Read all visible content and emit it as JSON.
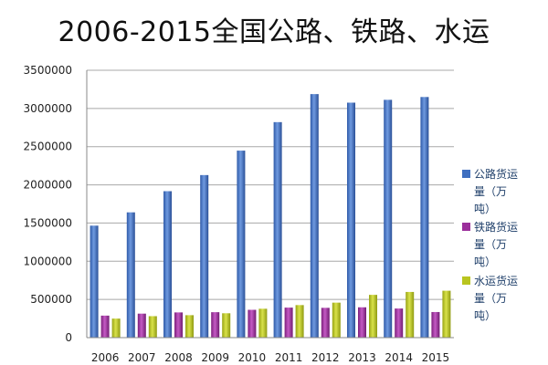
{
  "chart_data": {
    "type": "bar",
    "title": "2006-2015全国公路、铁路、水运",
    "xlabel": "",
    "ylabel": "",
    "categories": [
      "2006",
      "2007",
      "2008",
      "2009",
      "2010",
      "2011",
      "2012",
      "2013",
      "2014",
      "2015"
    ],
    "ylim": [
      0,
      3500000
    ],
    "yticks": [
      "0",
      "500000",
      "1000000",
      "1500000",
      "2000000",
      "2500000",
      "3000000",
      "3500000"
    ],
    "grid": true,
    "legend_position": "right",
    "series": [
      {
        "name": "公路货运量（万吨）",
        "legend_lines": [
          "公路货运",
          "量（万",
          "吨）"
        ],
        "color": "#3f6fc0",
        "values": [
          1466000,
          1640000,
          1917000,
          2128000,
          2448000,
          2821000,
          3188000,
          3076000,
          3113000,
          3150000
        ]
      },
      {
        "name": "铁路货运量（万吨）",
        "legend_lines": [
          "铁路货运",
          "量（万",
          "吨）"
        ],
        "color": "#9b2f9b",
        "values": [
          288000,
          314000,
          330000,
          333000,
          364000,
          393000,
          390000,
          397000,
          381000,
          335000
        ]
      },
      {
        "name": "水运货运量（万吨）",
        "legend_lines": [
          "水运货运",
          "量（万",
          "吨）"
        ],
        "color": "#b9c51f",
        "values": [
          249000,
          281000,
          294000,
          319000,
          378000,
          426000,
          458000,
          560000,
          598000,
          614000
        ]
      }
    ]
  }
}
